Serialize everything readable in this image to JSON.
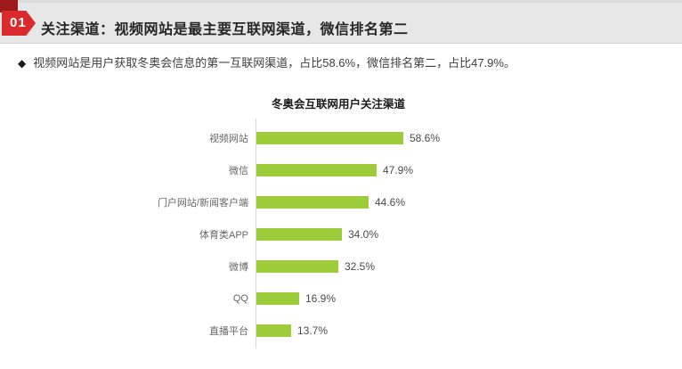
{
  "header": {
    "badge": "01",
    "title": "关注渠道：视频网站是最主要互联网渠道，微信排名第二"
  },
  "bullet": {
    "marker": "◆",
    "text": "视频网站是用户获取冬奥会信息的第一互联网渠道，占比58.6%，微信排名第二，占比47.9%。"
  },
  "colors": {
    "accent_red": "#d92b2b",
    "dark_red": "#9e1a1a",
    "header_gray": "#e7e7e7",
    "bar_green": "#9dcc3a",
    "axis_gray": "#d9d9d9"
  },
  "chart_data": {
    "type": "bar",
    "orientation": "horizontal",
    "title": "冬奥会互联网用户关注渠道",
    "categories": [
      "视频网站",
      "微信",
      "门户网站/新闻客户端",
      "体育类APP",
      "微博",
      "QQ",
      "直播平台"
    ],
    "values": [
      58.6,
      47.9,
      44.6,
      34.0,
      32.5,
      16.9,
      13.7
    ],
    "value_labels": [
      "58.6%",
      "47.9%",
      "44.6%",
      "34.0%",
      "32.5%",
      "16.9%",
      "13.7%"
    ],
    "unit": "%",
    "xlabel": "",
    "ylabel": "",
    "xlim": [
      0,
      70
    ],
    "grid": false,
    "legend": false,
    "sort": "descending"
  }
}
